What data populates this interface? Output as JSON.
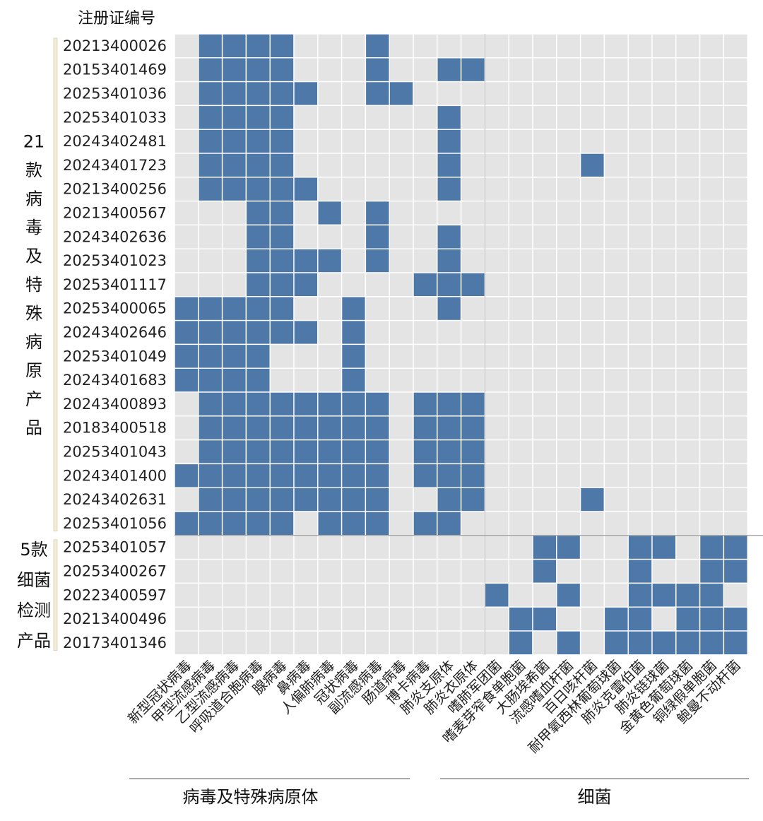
{
  "chart_data": {
    "type": "heatmap",
    "header": "注册证编号",
    "colors": {
      "on": "#4e78a8",
      "off": "#e4e4e4",
      "bracket": "#f3ecd6"
    },
    "columns": [
      "新型冠状病毒",
      "甲型流感病毒",
      "乙型流感病毒",
      "呼吸道合胞病毒",
      "腺病毒",
      "鼻病毒",
      "人偏肺病毒",
      "冠状病毒",
      "副流感病毒",
      "肠道病毒",
      "博卡病毒",
      "肺炎支原体",
      "肺炎衣原体",
      "嗜肺军团菌",
      "嗜麦芽窄食单胞菌",
      "大肠埃希菌",
      "流感嗜血杆菌",
      "百日咳杆菌",
      "耐甲氧西林葡萄球菌",
      "肺炎克雷伯菌",
      "肺炎链球菌",
      "金黄色葡萄球菌",
      "铜绿假单胞菌",
      "鲍曼不动杆菌"
    ],
    "column_groups": [
      {
        "label": "病毒及特殊病原体",
        "count": 13
      },
      {
        "label": "细菌",
        "count": 11
      }
    ],
    "row_groups": [
      {
        "label": [
          "21",
          "款",
          "病",
          "毒",
          "及",
          "特",
          "殊",
          "病",
          "原",
          "产",
          "品"
        ],
        "count": 21
      },
      {
        "label": [
          "5款",
          "细菌",
          "检测",
          "产品"
        ],
        "count": 5
      }
    ],
    "rows": [
      {
        "id": "20213400026",
        "cells": [
          0,
          1,
          1,
          1,
          1,
          0,
          0,
          0,
          1,
          0,
          0,
          0,
          0,
          0,
          0,
          0,
          0,
          0,
          0,
          0,
          0,
          0,
          0,
          0
        ]
      },
      {
        "id": "20153401469",
        "cells": [
          0,
          1,
          1,
          1,
          1,
          0,
          0,
          0,
          1,
          0,
          0,
          1,
          1,
          0,
          0,
          0,
          0,
          0,
          0,
          0,
          0,
          0,
          0,
          0
        ]
      },
      {
        "id": "20253401036",
        "cells": [
          0,
          1,
          1,
          1,
          1,
          1,
          0,
          0,
          1,
          1,
          0,
          0,
          0,
          0,
          0,
          0,
          0,
          0,
          0,
          0,
          0,
          0,
          0,
          0
        ]
      },
      {
        "id": "20253401033",
        "cells": [
          0,
          1,
          1,
          1,
          1,
          0,
          0,
          0,
          0,
          0,
          0,
          1,
          0,
          0,
          0,
          0,
          0,
          0,
          0,
          0,
          0,
          0,
          0,
          0
        ]
      },
      {
        "id": "20243402481",
        "cells": [
          0,
          1,
          1,
          1,
          1,
          0,
          0,
          0,
          0,
          0,
          0,
          1,
          0,
          0,
          0,
          0,
          0,
          0,
          0,
          0,
          0,
          0,
          0,
          0
        ]
      },
      {
        "id": "20243401723",
        "cells": [
          0,
          1,
          1,
          1,
          1,
          0,
          0,
          0,
          0,
          0,
          0,
          1,
          0,
          0,
          0,
          0,
          0,
          1,
          0,
          0,
          0,
          0,
          0,
          0
        ]
      },
      {
        "id": "20213400256",
        "cells": [
          0,
          1,
          1,
          1,
          1,
          1,
          0,
          0,
          0,
          0,
          0,
          1,
          0,
          0,
          0,
          0,
          0,
          0,
          0,
          0,
          0,
          0,
          0,
          0
        ]
      },
      {
        "id": "20213400567",
        "cells": [
          0,
          0,
          0,
          1,
          1,
          0,
          1,
          0,
          1,
          0,
          0,
          0,
          0,
          0,
          0,
          0,
          0,
          0,
          0,
          0,
          0,
          0,
          0,
          0
        ]
      },
      {
        "id": "20243402636",
        "cells": [
          0,
          0,
          0,
          1,
          1,
          0,
          0,
          0,
          1,
          0,
          0,
          1,
          0,
          0,
          0,
          0,
          0,
          0,
          0,
          0,
          0,
          0,
          0,
          0
        ]
      },
      {
        "id": "20253401023",
        "cells": [
          0,
          0,
          0,
          1,
          1,
          1,
          1,
          0,
          1,
          0,
          0,
          1,
          0,
          0,
          0,
          0,
          0,
          0,
          0,
          0,
          0,
          0,
          0,
          0
        ]
      },
      {
        "id": "20253401117",
        "cells": [
          0,
          0,
          0,
          1,
          1,
          1,
          0,
          0,
          0,
          0,
          1,
          1,
          1,
          0,
          0,
          0,
          0,
          0,
          0,
          0,
          0,
          0,
          0,
          0
        ]
      },
      {
        "id": "20253400065",
        "cells": [
          1,
          1,
          1,
          1,
          1,
          0,
          0,
          1,
          0,
          0,
          0,
          1,
          0,
          0,
          0,
          0,
          0,
          0,
          0,
          0,
          0,
          0,
          0,
          0
        ]
      },
      {
        "id": "20243402646",
        "cells": [
          1,
          1,
          1,
          1,
          1,
          1,
          0,
          1,
          0,
          0,
          0,
          0,
          0,
          0,
          0,
          0,
          0,
          0,
          0,
          0,
          0,
          0,
          0,
          0
        ]
      },
      {
        "id": "20253401049",
        "cells": [
          1,
          1,
          1,
          1,
          0,
          0,
          0,
          1,
          0,
          0,
          0,
          0,
          0,
          0,
          0,
          0,
          0,
          0,
          0,
          0,
          0,
          0,
          0,
          0
        ]
      },
      {
        "id": "20243401683",
        "cells": [
          1,
          1,
          1,
          1,
          0,
          0,
          0,
          1,
          0,
          0,
          0,
          0,
          0,
          0,
          0,
          0,
          0,
          0,
          0,
          0,
          0,
          0,
          0,
          0
        ]
      },
      {
        "id": "20243400893",
        "cells": [
          0,
          1,
          1,
          1,
          1,
          1,
          1,
          1,
          1,
          0,
          1,
          1,
          1,
          0,
          0,
          0,
          0,
          0,
          0,
          0,
          0,
          0,
          0,
          0
        ]
      },
      {
        "id": "20183400518",
        "cells": [
          0,
          1,
          1,
          1,
          1,
          1,
          1,
          1,
          1,
          0,
          1,
          1,
          1,
          0,
          0,
          0,
          0,
          0,
          0,
          0,
          0,
          0,
          0,
          0
        ]
      },
      {
        "id": "20253401043",
        "cells": [
          0,
          1,
          1,
          1,
          1,
          1,
          1,
          1,
          1,
          0,
          1,
          1,
          1,
          0,
          0,
          0,
          0,
          0,
          0,
          0,
          0,
          0,
          0,
          0
        ]
      },
      {
        "id": "20243401400",
        "cells": [
          1,
          1,
          1,
          1,
          1,
          1,
          1,
          1,
          1,
          0,
          1,
          1,
          1,
          0,
          0,
          0,
          0,
          0,
          0,
          0,
          0,
          0,
          0,
          0
        ]
      },
      {
        "id": "20243402631",
        "cells": [
          0,
          1,
          1,
          1,
          1,
          1,
          1,
          1,
          1,
          0,
          0,
          1,
          1,
          0,
          0,
          0,
          0,
          1,
          0,
          0,
          0,
          0,
          0,
          0
        ]
      },
      {
        "id": "20253401056",
        "cells": [
          1,
          1,
          1,
          1,
          1,
          0,
          1,
          1,
          1,
          0,
          1,
          1,
          0,
          0,
          0,
          0,
          0,
          0,
          0,
          0,
          0,
          0,
          0,
          0
        ]
      },
      {
        "id": "20253401057",
        "cells": [
          0,
          0,
          0,
          0,
          0,
          0,
          0,
          0,
          0,
          0,
          0,
          0,
          0,
          0,
          0,
          1,
          1,
          0,
          0,
          1,
          1,
          0,
          1,
          1
        ]
      },
      {
        "id": "20253400267",
        "cells": [
          0,
          0,
          0,
          0,
          0,
          0,
          0,
          0,
          0,
          0,
          0,
          0,
          0,
          0,
          0,
          1,
          0,
          0,
          0,
          1,
          0,
          0,
          1,
          1
        ]
      },
      {
        "id": "20223400597",
        "cells": [
          0,
          0,
          0,
          0,
          0,
          0,
          0,
          0,
          0,
          0,
          0,
          0,
          0,
          1,
          0,
          0,
          1,
          0,
          0,
          1,
          1,
          1,
          1,
          0
        ]
      },
      {
        "id": "20213400496",
        "cells": [
          0,
          0,
          0,
          0,
          0,
          0,
          0,
          0,
          0,
          0,
          0,
          0,
          0,
          0,
          1,
          1,
          0,
          0,
          1,
          1,
          0,
          1,
          1,
          1
        ]
      },
      {
        "id": "20173401346",
        "cells": [
          0,
          0,
          0,
          0,
          0,
          0,
          0,
          0,
          0,
          0,
          0,
          0,
          0,
          0,
          1,
          0,
          1,
          0,
          1,
          1,
          1,
          1,
          1,
          1
        ]
      }
    ]
  }
}
